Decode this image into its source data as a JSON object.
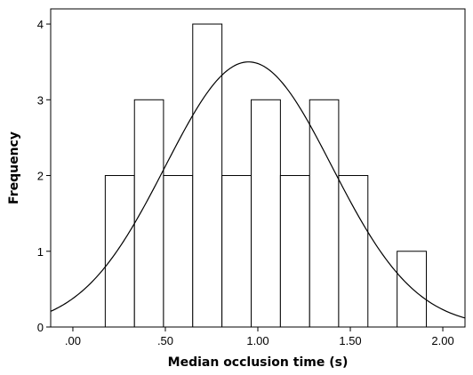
{
  "chart_data": {
    "type": "bar",
    "subtype": "histogram",
    "title": "",
    "xlabel": "Median occlusion time (s)",
    "ylabel": "Frequency",
    "xlim": [
      -0.12,
      2.12
    ],
    "ylim": [
      0,
      4.2
    ],
    "x_ticks": [
      0,
      0.5,
      1.0,
      1.5,
      2.0
    ],
    "x_tick_labels": [
      ".00",
      ".50",
      "1.00",
      "1.50",
      "2.00"
    ],
    "y_ticks": [
      0,
      1,
      2,
      3,
      4
    ],
    "y_tick_labels": [
      "0",
      "1",
      "2",
      "3",
      "4"
    ],
    "bins": [
      {
        "start": 0.175,
        "end": 0.333,
        "value": 2
      },
      {
        "start": 0.333,
        "end": 0.49,
        "value": 3
      },
      {
        "start": 0.49,
        "end": 0.648,
        "value": 2
      },
      {
        "start": 0.648,
        "end": 0.806,
        "value": 4
      },
      {
        "start": 0.806,
        "end": 0.964,
        "value": 2
      },
      {
        "start": 0.964,
        "end": 1.122,
        "value": 3
      },
      {
        "start": 1.122,
        "end": 1.28,
        "value": 2
      },
      {
        "start": 1.28,
        "end": 1.437,
        "value": 3
      },
      {
        "start": 1.437,
        "end": 1.595,
        "value": 2
      },
      {
        "start": 1.595,
        "end": 1.753,
        "value": 0
      },
      {
        "start": 1.753,
        "end": 1.911,
        "value": 1
      }
    ],
    "normal_curve": {
      "mean": 0.95,
      "sd": 0.45,
      "peak": 3.5
    },
    "grid": false,
    "legend": "none"
  }
}
